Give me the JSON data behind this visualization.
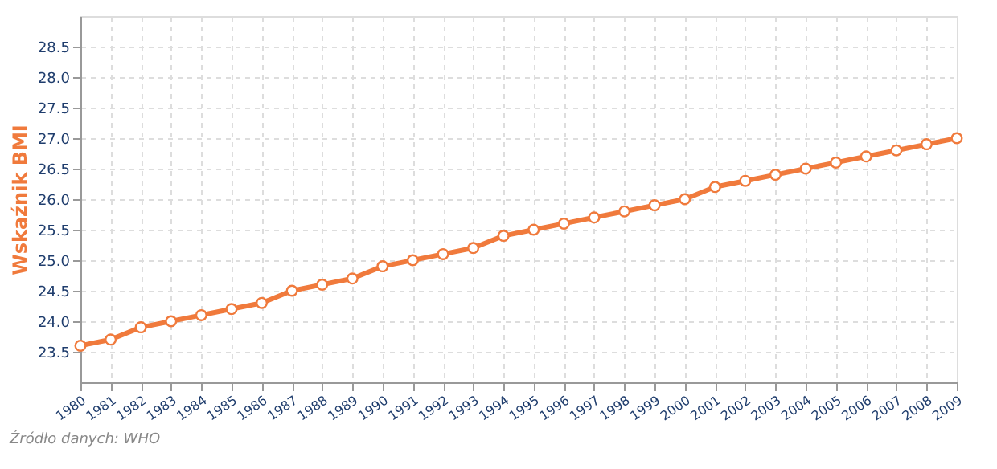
{
  "chart_data": {
    "type": "line",
    "ylabel": "Wskaźnik BMI",
    "categories": [
      "1980",
      "1981",
      "1982",
      "1983",
      "1984",
      "1985",
      "1986",
      "1987",
      "1988",
      "1989",
      "1990",
      "1991",
      "1992",
      "1993",
      "1994",
      "1995",
      "1996",
      "1997",
      "1998",
      "1999",
      "2000",
      "2001",
      "2002",
      "2003",
      "2004",
      "2005",
      "2006",
      "2007",
      "2008",
      "2009"
    ],
    "series": [
      {
        "color": "#f07a3c",
        "values": [
          23.6,
          23.7,
          23.9,
          24.0,
          24.1,
          24.2,
          24.3,
          24.5,
          24.6,
          24.7,
          24.9,
          25.0,
          25.1,
          25.2,
          25.4,
          25.5,
          25.6,
          25.7,
          25.8,
          25.9,
          26.0,
          26.2,
          26.3,
          26.4,
          26.5,
          26.6,
          26.7,
          26.8,
          26.9,
          27.0
        ]
      }
    ],
    "ylim": [
      23.0,
      29.0
    ],
    "yticks": [
      23.5,
      {
        "value": 24,
        "label": "24.0"
      },
      24.5,
      {
        "value": 25,
        "label": "25.0"
      },
      25.5,
      {
        "value": 26,
        "label": "26.0"
      },
      26.5,
      {
        "value": 27,
        "label": "27.0"
      },
      27.5,
      {
        "value": 28,
        "label": "28.0"
      },
      28.5
    ],
    "grid": true,
    "marker": "circle",
    "line_style": "solid",
    "legend": false,
    "annotations": [
      "Źródło danych: WHO"
    ]
  }
}
